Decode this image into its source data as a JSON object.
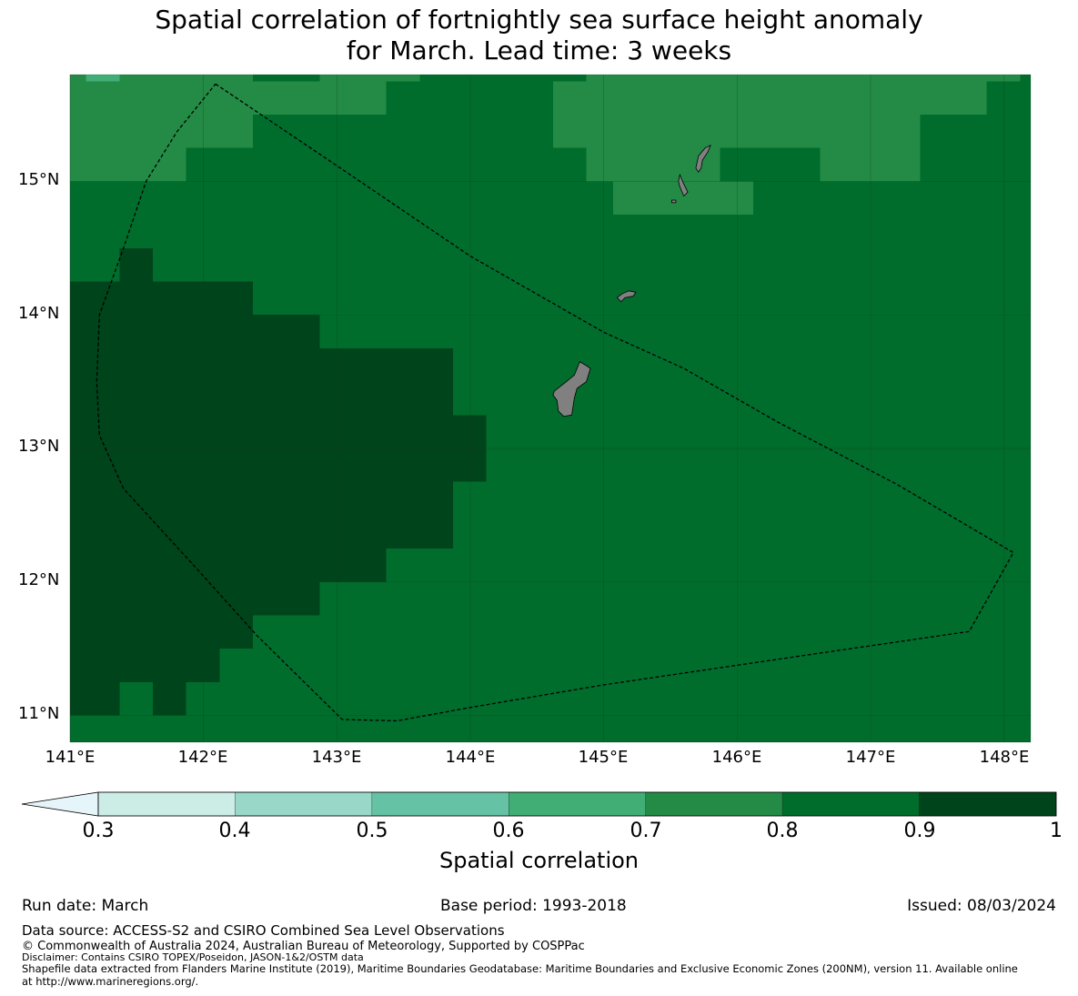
{
  "title": {
    "line1": "Spatial correlation of fortnightly sea surface height anomaly",
    "line2": "for March. Lead time: 3 weeks"
  },
  "map": {
    "lon_range": [
      141.0,
      148.2
    ],
    "lat_range": [
      10.8,
      15.8
    ],
    "lat_ticks": [
      {
        "value": 15,
        "label": "15°N"
      },
      {
        "value": 14,
        "label": "14°N"
      },
      {
        "value": 13,
        "label": "13°N"
      },
      {
        "value": 12,
        "label": "12°N"
      },
      {
        "value": 11,
        "label": "11°N"
      }
    ],
    "lon_ticks": [
      {
        "value": 141,
        "label": "141°E"
      },
      {
        "value": 142,
        "label": "142°E"
      },
      {
        "value": 143,
        "label": "143°E"
      },
      {
        "value": 144,
        "label": "144°E"
      },
      {
        "value": 145,
        "label": "145°E"
      },
      {
        "value": 146,
        "label": "146°E"
      },
      {
        "value": 147,
        "label": "147°E"
      },
      {
        "value": 148,
        "label": "148°E"
      }
    ],
    "background_level": "0.8-0.9",
    "regions": [
      {
        "level": "0.6-0.7",
        "lon": [
          141.12,
          141.37
        ],
        "lat": [
          15.75,
          15.8
        ]
      },
      {
        "level": "0.7-0.8",
        "lon": [
          141.0,
          141.12
        ],
        "lat": [
          15.0,
          15.8
        ]
      },
      {
        "level": "0.7-0.8",
        "lon": [
          141.37,
          142.37
        ],
        "lat": [
          15.75,
          15.8
        ]
      },
      {
        "level": "0.7-0.8",
        "lon": [
          141.12,
          141.87
        ],
        "lat": [
          15.0,
          15.75
        ]
      },
      {
        "level": "0.7-0.8",
        "lon": [
          141.87,
          142.37
        ],
        "lat": [
          15.25,
          15.75
        ]
      },
      {
        "level": "0.7-0.8",
        "lon": [
          142.37,
          142.87
        ],
        "lat": [
          15.5,
          15.75
        ]
      },
      {
        "level": "0.7-0.8",
        "lon": [
          142.87,
          143.37
        ],
        "lat": [
          15.5,
          15.8
        ]
      },
      {
        "level": "0.7-0.8",
        "lon": [
          143.37,
          143.62
        ],
        "lat": [
          15.75,
          15.8
        ]
      },
      {
        "level": "0.7-0.8",
        "lon": [
          144.62,
          144.87
        ],
        "lat": [
          15.25,
          15.75
        ]
      },
      {
        "level": "0.7-0.8",
        "lon": [
          144.87,
          145.87
        ],
        "lat": [
          15.0,
          15.8
        ]
      },
      {
        "level": "0.7-0.8",
        "lon": [
          145.07,
          146.12
        ],
        "lat": [
          14.75,
          15.0
        ]
      },
      {
        "level": "0.7-0.8",
        "lon": [
          145.87,
          147.37
        ],
        "lat": [
          15.25,
          15.8
        ]
      },
      {
        "level": "0.7-0.8",
        "lon": [
          146.62,
          147.37
        ],
        "lat": [
          15.0,
          15.25
        ]
      },
      {
        "level": "0.7-0.8",
        "lon": [
          147.37,
          147.87
        ],
        "lat": [
          15.5,
          15.8
        ]
      },
      {
        "level": "0.7-0.8",
        "lon": [
          147.87,
          148.12
        ],
        "lat": [
          15.75,
          15.8
        ]
      },
      {
        "level": "0.9-1",
        "lon": [
          141.37,
          141.62
        ],
        "lat": [
          14.0,
          14.5
        ]
      },
      {
        "level": "0.9-1",
        "lon": [
          141.0,
          142.37
        ],
        "lat": [
          12.0,
          14.25
        ]
      },
      {
        "level": "0.9-1",
        "lon": [
          142.37,
          142.87
        ],
        "lat": [
          11.75,
          14.0
        ]
      },
      {
        "level": "0.9-1",
        "lon": [
          142.87,
          143.37
        ],
        "lat": [
          12.0,
          13.75
        ]
      },
      {
        "level": "0.9-1",
        "lon": [
          143.37,
          143.87
        ],
        "lat": [
          12.25,
          13.75
        ]
      },
      {
        "level": "0.9-1",
        "lon": [
          143.62,
          143.87
        ],
        "lat": [
          12.25,
          13.5
        ]
      },
      {
        "level": "0.9-1",
        "lon": [
          143.87,
          144.12
        ],
        "lat": [
          12.75,
          13.25
        ]
      },
      {
        "level": "0.9-1",
        "lon": [
          141.0,
          142.37
        ],
        "lat": [
          11.5,
          12.0
        ]
      },
      {
        "level": "0.9-1",
        "lon": [
          141.0,
          142.12
        ],
        "lat": [
          11.25,
          11.5
        ]
      },
      {
        "level": "0.9-1",
        "lon": [
          141.0,
          141.37
        ],
        "lat": [
          11.0,
          11.25
        ]
      },
      {
        "level": "0.9-1",
        "lon": [
          141.62,
          141.87
        ],
        "lat": [
          11.0,
          11.25
        ]
      }
    ],
    "eez_boundary": [
      [
        142.09,
        15.73
      ],
      [
        143.1,
        15.05
      ],
      [
        144.0,
        14.44
      ],
      [
        145.0,
        13.87
      ],
      [
        145.6,
        13.6
      ],
      [
        146.3,
        13.2
      ],
      [
        147.2,
        12.73
      ],
      [
        148.07,
        12.22
      ],
      [
        147.74,
        11.63
      ],
      [
        146.5,
        11.45
      ],
      [
        145.0,
        11.23
      ],
      [
        144.0,
        11.06
      ],
      [
        143.45,
        10.96
      ],
      [
        143.04,
        10.97
      ],
      [
        142.4,
        11.6
      ],
      [
        141.95,
        12.1
      ],
      [
        141.4,
        12.7
      ],
      [
        141.22,
        13.1
      ],
      [
        141.2,
        13.5
      ],
      [
        141.22,
        14.0
      ],
      [
        141.4,
        14.5
      ],
      [
        141.57,
        15.0
      ],
      [
        141.8,
        15.37
      ],
      [
        142.09,
        15.73
      ]
    ],
    "islands": [
      {
        "name": "Guam",
        "outline": [
          [
            144.63,
            13.43
          ],
          [
            144.72,
            13.5
          ],
          [
            144.78,
            13.55
          ],
          [
            144.82,
            13.65
          ],
          [
            144.87,
            13.62
          ],
          [
            144.9,
            13.6
          ],
          [
            144.87,
            13.5
          ],
          [
            144.8,
            13.45
          ],
          [
            144.78,
            13.38
          ],
          [
            144.76,
            13.25
          ],
          [
            144.7,
            13.24
          ],
          [
            144.66,
            13.28
          ],
          [
            144.65,
            13.36
          ],
          [
            144.62,
            13.4
          ]
        ]
      },
      {
        "name": "Rota",
        "outline": [
          [
            145.1,
            14.13
          ],
          [
            145.14,
            14.16
          ],
          [
            145.19,
            14.18
          ],
          [
            145.24,
            14.17
          ],
          [
            145.22,
            14.14
          ],
          [
            145.16,
            14.13
          ],
          [
            145.13,
            14.1
          ]
        ]
      },
      {
        "name": "Tinian",
        "outline": [
          [
            145.57,
            15.05
          ],
          [
            145.6,
            14.98
          ],
          [
            145.63,
            14.92
          ],
          [
            145.6,
            14.89
          ],
          [
            145.57,
            14.96
          ],
          [
            145.56,
            15.0
          ]
        ]
      },
      {
        "name": "Saipan",
        "outline": [
          [
            145.69,
            15.1
          ],
          [
            145.71,
            15.19
          ],
          [
            145.76,
            15.25
          ],
          [
            145.8,
            15.27
          ],
          [
            145.78,
            15.22
          ],
          [
            145.74,
            15.16
          ],
          [
            145.73,
            15.1
          ],
          [
            145.71,
            15.07
          ]
        ]
      },
      {
        "name": "Aguijan",
        "outline": [
          [
            145.51,
            14.86
          ],
          [
            145.54,
            14.86
          ],
          [
            145.54,
            14.84
          ],
          [
            145.51,
            14.84
          ]
        ]
      }
    ]
  },
  "colorbar": {
    "label": "Spatial correlation",
    "ticks": [
      "0.3",
      "0.4",
      "0.5",
      "0.6",
      "0.7",
      "0.8",
      "0.9",
      "1"
    ],
    "levels": [
      {
        "range": "0.3-0.4",
        "color": "#ccece6"
      },
      {
        "range": "0.4-0.5",
        "color": "#99d8c9"
      },
      {
        "range": "0.5-0.6",
        "color": "#66c2a4"
      },
      {
        "range": "0.6-0.7",
        "color": "#41ae76"
      },
      {
        "range": "0.7-0.8",
        "color": "#238b45"
      },
      {
        "range": "0.8-0.9",
        "color": "#006d2c"
      },
      {
        "range": "0.9-1",
        "color": "#00441b"
      }
    ],
    "extend_color": "#e5f5f9"
  },
  "meta": {
    "run_date": "Run date: March",
    "base_period": "Base period: 1993-2018",
    "issued": "Issued: 08/03/2024"
  },
  "footer": {
    "data_source": "Data source: ACCESS-S2 and CSIRO Combined Sea Level Observations",
    "copyright": "© Commonwealth of Australia 2024, Australian Bureau of Meteorology, Supported by COSPPac",
    "disclaimer": "Disclaimer: Contains CSIRO TOPEX/Poseidon, JASON-1&2/OSTM data",
    "shapefile": "Shapefile data extracted from Flanders Marine Institute (2019), Maritime Boundaries Geodatabase: Maritime Boundaries and Exclusive Economic Zones (200NM), version 11. Available online",
    "url": "at http://www.marineregions.org/."
  },
  "colors": {
    "land": "#808080",
    "gridline": "#1a3a1a",
    "boundary": "#000000"
  }
}
